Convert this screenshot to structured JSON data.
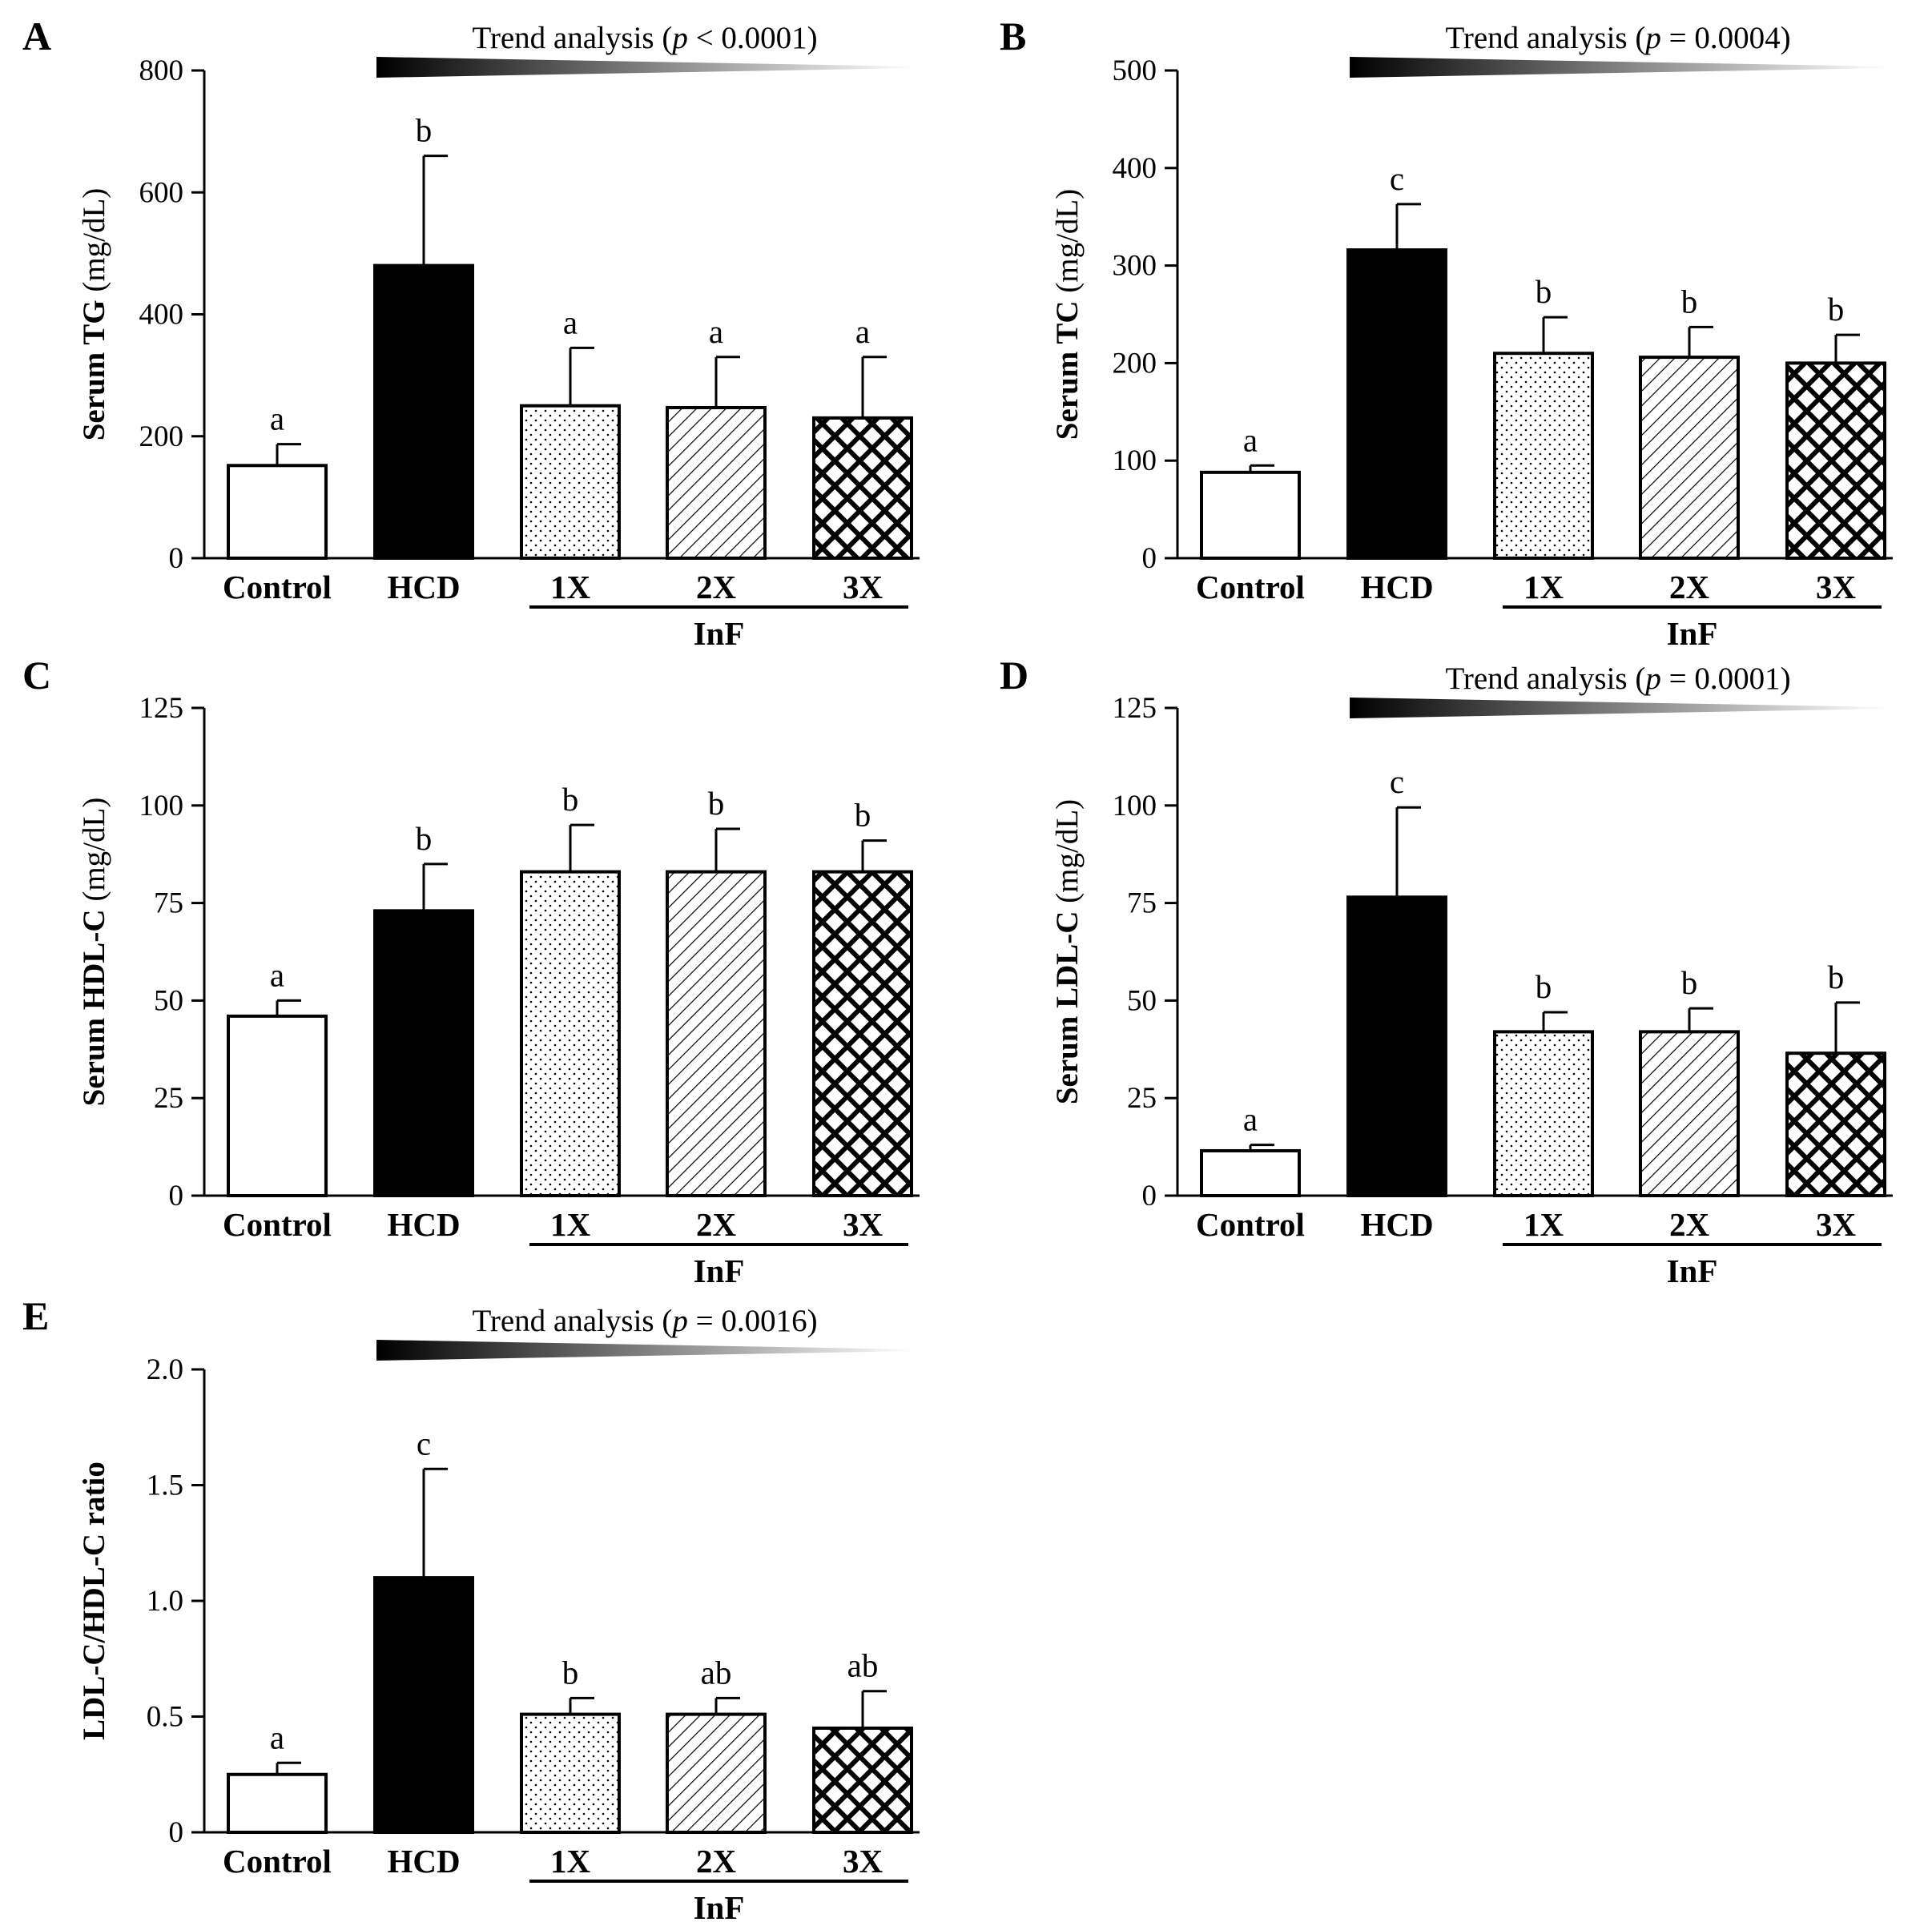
{
  "colors": {
    "ink": "#000000",
    "background": "#ffffff",
    "bar_control": "#ffffff",
    "bar_hcd": "#000000",
    "wedge_dark": "#000000",
    "wedge_light": "#ffffff"
  },
  "chart_data": [
    {
      "panel": "A",
      "type": "bar",
      "ylabel_bold": "Serum TG",
      "ylabel_unit": " (mg/dL)",
      "categories": [
        "Control",
        "HCD",
        "1X",
        "2X",
        "3X"
      ],
      "patterns": [
        "none",
        "solid",
        "dots",
        "hatch",
        "checker"
      ],
      "values": [
        152,
        480,
        250,
        247,
        230
      ],
      "errors": [
        35,
        180,
        95,
        83,
        100
      ],
      "significance": [
        "a",
        "b",
        "a",
        "a",
        "a"
      ],
      "ylim": [
        0,
        800
      ],
      "yticks": [
        "0",
        "200",
        "400",
        "600",
        "800"
      ],
      "group": {
        "label": "InF",
        "members": [
          "1X",
          "2X",
          "3X"
        ]
      },
      "trend": {
        "prefix": "Trend analysis (",
        "p": "p",
        "rest": " < 0.0001)"
      }
    },
    {
      "panel": "B",
      "type": "bar",
      "ylabel_bold": "Serum TC",
      "ylabel_unit": " (mg/dL)",
      "categories": [
        "Control",
        "HCD",
        "1X",
        "2X",
        "3X"
      ],
      "patterns": [
        "none",
        "solid",
        "dots",
        "hatch",
        "checker"
      ],
      "values": [
        88,
        316,
        210,
        206,
        200
      ],
      "errors": [
        7,
        47,
        37,
        31,
        29
      ],
      "significance": [
        "a",
        "c",
        "b",
        "b",
        "b"
      ],
      "ylim": [
        0,
        500
      ],
      "yticks": [
        "0",
        "100",
        "200",
        "300",
        "400",
        "500"
      ],
      "group": {
        "label": "InF",
        "members": [
          "1X",
          "2X",
          "3X"
        ]
      },
      "trend": {
        "prefix": "Trend analysis (",
        "p": "p",
        "rest": " = 0.0004)"
      }
    },
    {
      "panel": "C",
      "type": "bar",
      "ylabel_bold": "Serum HDL-C",
      "ylabel_unit": " (mg/dL)",
      "categories": [
        "Control",
        "HCD",
        "1X",
        "2X",
        "3X"
      ],
      "patterns": [
        "none",
        "solid",
        "dots",
        "hatch",
        "checker"
      ],
      "values": [
        46,
        73,
        83,
        83,
        83
      ],
      "errors": [
        4,
        12,
        12,
        11,
        8
      ],
      "significance": [
        "a",
        "b",
        "b",
        "b",
        "b"
      ],
      "ylim": [
        0,
        125
      ],
      "yticks": [
        "0",
        "25",
        "50",
        "75",
        "100",
        "125"
      ],
      "group": {
        "label": "InF",
        "members": [
          "1X",
          "2X",
          "3X"
        ]
      },
      "trend": null
    },
    {
      "panel": "D",
      "type": "bar",
      "ylabel_bold": "Serum LDL-C",
      "ylabel_unit": " (mg/dL)",
      "categories": [
        "Control",
        "HCD",
        "1X",
        "2X",
        "3X"
      ],
      "patterns": [
        "none",
        "solid",
        "dots",
        "hatch",
        "checker"
      ],
      "values": [
        11.5,
        76.5,
        42,
        42,
        36.5
      ],
      "errors": [
        1.5,
        23,
        5,
        6,
        13
      ],
      "significance": [
        "a",
        "c",
        "b",
        "b",
        "b"
      ],
      "ylim": [
        0,
        125
      ],
      "yticks": [
        "0",
        "25",
        "50",
        "75",
        "100",
        "125"
      ],
      "group": {
        "label": "InF",
        "members": [
          "1X",
          "2X",
          "3X"
        ]
      },
      "trend": {
        "prefix": "Trend analysis (",
        "p": "p",
        "rest": " = 0.0001)"
      }
    },
    {
      "panel": "E",
      "type": "bar",
      "ylabel_bold": "LDL-C/HDL-C ratio",
      "ylabel_unit": "",
      "categories": [
        "Control",
        "HCD",
        "1X",
        "2X",
        "3X"
      ],
      "patterns": [
        "none",
        "solid",
        "dots",
        "hatch",
        "checker"
      ],
      "values": [
        0.25,
        1.1,
        0.51,
        0.51,
        0.45
      ],
      "errors": [
        0.05,
        0.47,
        0.07,
        0.07,
        0.16
      ],
      "significance": [
        "a",
        "c",
        "b",
        "ab",
        "ab"
      ],
      "ylim": [
        0,
        2.0
      ],
      "yticks": [
        "0",
        "0.5",
        "1.0",
        "1.5",
        "2.0"
      ],
      "group": {
        "label": "InF",
        "members": [
          "1X",
          "2X",
          "3X"
        ]
      },
      "trend": {
        "prefix": "Trend analysis (",
        "p": "p",
        "rest": " = 0.0016)"
      }
    }
  ]
}
